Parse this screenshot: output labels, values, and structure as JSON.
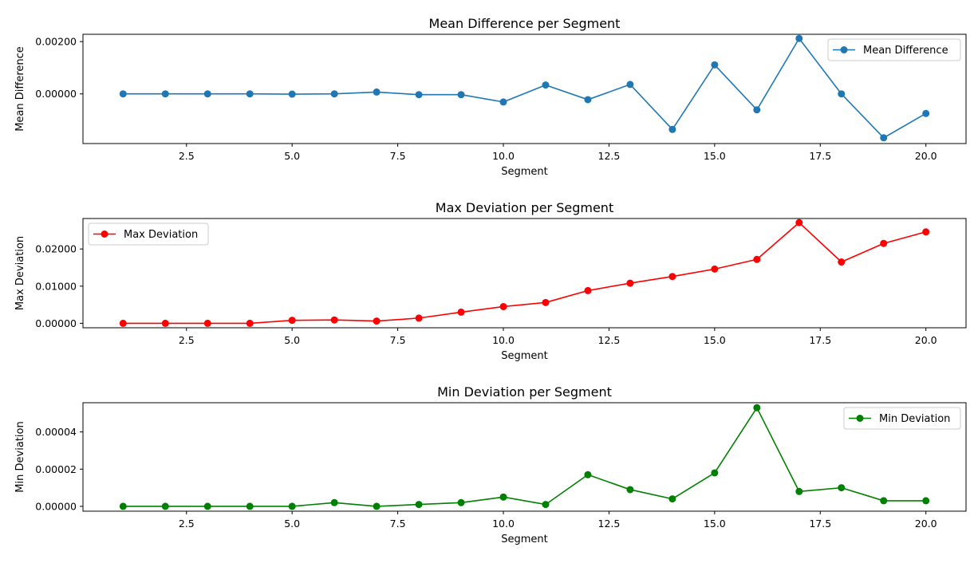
{
  "chart_data": [
    {
      "type": "line",
      "title": "Mean Difference per Segment",
      "xlabel": "Segment",
      "ylabel": "Mean Difference",
      "xlim": [
        0.05,
        20.95
      ],
      "ylim": [
        -0.0019,
        0.00228
      ],
      "xticks": [
        2.5,
        5.0,
        7.5,
        10.0,
        12.5,
        15.0,
        17.5,
        20.0
      ],
      "xtick_labels": [
        "2.5",
        "5.0",
        "7.5",
        "10.0",
        "12.5",
        "15.0",
        "17.5",
        "20.0"
      ],
      "yticks": [
        0.0,
        0.002
      ],
      "ytick_labels": [
        "0.00000",
        "0.00200"
      ],
      "legend_position": "upper right",
      "grid": false,
      "series": [
        {
          "name": "Mean Difference",
          "color": "#1f77b4",
          "x": [
            1,
            2,
            3,
            4,
            5,
            6,
            7,
            8,
            9,
            10,
            11,
            12,
            13,
            14,
            15,
            16,
            17,
            18,
            19,
            20
          ],
          "values": [
            0.0,
            0.0,
            0.0,
            0.0,
            -1e-05,
            0.0,
            7e-05,
            -3e-05,
            -3e-05,
            -0.00031,
            0.00034,
            -0.00022,
            0.00036,
            -0.00136,
            0.00111,
            -0.00061,
            0.00212,
            0.0,
            -0.00168,
            -0.00075
          ]
        }
      ]
    },
    {
      "type": "line",
      "title": "Max Deviation per Segment",
      "xlabel": "Segment",
      "ylabel": "Max Deviation",
      "xlim": [
        0.05,
        20.95
      ],
      "ylim": [
        -0.0012,
        0.0282
      ],
      "xticks": [
        2.5,
        5.0,
        7.5,
        10.0,
        12.5,
        15.0,
        17.5,
        20.0
      ],
      "xtick_labels": [
        "2.5",
        "5.0",
        "7.5",
        "10.0",
        "12.5",
        "15.0",
        "17.5",
        "20.0"
      ],
      "yticks": [
        0.0,
        0.01,
        0.02
      ],
      "ytick_labels": [
        "0.00000",
        "0.01000",
        "0.02000"
      ],
      "legend_position": "upper left",
      "grid": false,
      "series": [
        {
          "name": "Max Deviation",
          "color": "#ff0000",
          "x": [
            1,
            2,
            3,
            4,
            5,
            6,
            7,
            8,
            9,
            10,
            11,
            12,
            13,
            14,
            15,
            16,
            17,
            18,
            19,
            20
          ],
          "values": [
            0.0,
            0.0,
            0.0,
            0.0,
            0.0008,
            0.0009,
            0.0006,
            0.0014,
            0.003,
            0.0045,
            0.0056,
            0.0088,
            0.0108,
            0.0126,
            0.0146,
            0.0172,
            0.0271,
            0.0165,
            0.0215,
            0.0246
          ]
        }
      ]
    },
    {
      "type": "line",
      "title": "Min Deviation per Segment",
      "xlabel": "Segment",
      "ylabel": "Min Deviation",
      "xlim": [
        0.05,
        20.95
      ],
      "ylim": [
        -2.6e-06,
        5.57e-05
      ],
      "xticks": [
        2.5,
        5.0,
        7.5,
        10.0,
        12.5,
        15.0,
        17.5,
        20.0
      ],
      "xtick_labels": [
        "2.5",
        "5.0",
        "7.5",
        "10.0",
        "12.5",
        "15.0",
        "17.5",
        "20.0"
      ],
      "yticks": [
        0.0,
        2e-05,
        4e-05
      ],
      "ytick_labels": [
        "0.00000",
        "0.00002",
        "0.00004"
      ],
      "legend_position": "upper right",
      "grid": false,
      "series": [
        {
          "name": "Min Deviation",
          "color": "#008000",
          "x": [
            1,
            2,
            3,
            4,
            5,
            6,
            7,
            8,
            9,
            10,
            11,
            12,
            13,
            14,
            15,
            16,
            17,
            18,
            19,
            20
          ],
          "values": [
            0.0,
            0.0,
            0.0,
            0.0,
            0.0,
            2e-06,
            0.0,
            1e-06,
            2e-06,
            5e-06,
            1e-06,
            1.7e-05,
            9e-06,
            4e-06,
            1.8e-05,
            5.3e-05,
            8e-06,
            1e-05,
            3e-06,
            3e-06
          ]
        }
      ]
    }
  ]
}
